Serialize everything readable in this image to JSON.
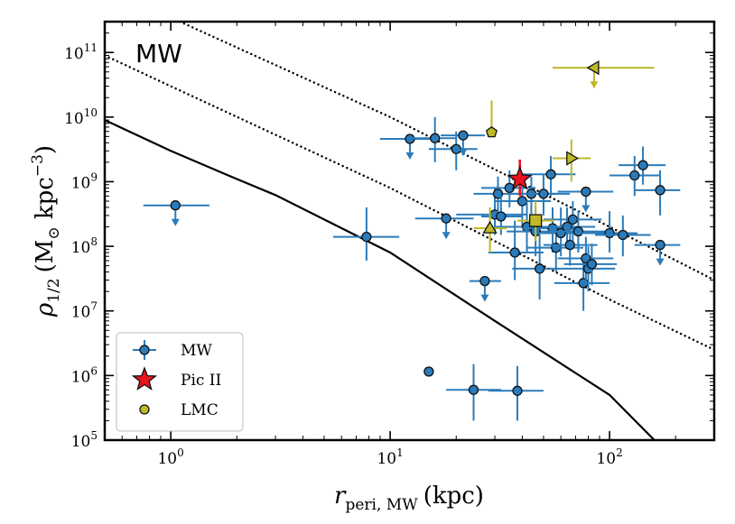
{
  "chart_data": {
    "type": "scatter",
    "panel_label": "MW",
    "xlabel": {
      "main": "r",
      "sub": "peri, MW",
      "unit": "(kpc)"
    },
    "ylabel": {
      "main": "ρ",
      "sub": "1/2",
      "unit_open": "(M",
      "unit_sub": "⊙",
      "unit_mid": " kpc",
      "unit_sup": "−3",
      "unit_close": ")"
    },
    "xscale": "log",
    "yscale": "log",
    "xlim": [
      0.5,
      300
    ],
    "ylim": [
      100000,
      300000000000
    ],
    "x_ticks": [
      {
        "value": 1,
        "base": "10",
        "exp": "0"
      },
      {
        "value": 10,
        "base": "10",
        "exp": "1"
      },
      {
        "value": 100,
        "base": "10",
        "exp": "2"
      }
    ],
    "y_ticks": [
      {
        "value": 100000,
        "base": "10",
        "exp": "5"
      },
      {
        "value": 1000000,
        "base": "10",
        "exp": "6"
      },
      {
        "value": 10000000,
        "base": "10",
        "exp": "7"
      },
      {
        "value": 100000000,
        "base": "10",
        "exp": "8"
      },
      {
        "value": 1000000000,
        "base": "10",
        "exp": "9"
      },
      {
        "value": 10000000000,
        "base": "10",
        "exp": "10"
      },
      {
        "value": 100000000000,
        "base": "10",
        "exp": "11"
      }
    ],
    "lines": [
      {
        "name": "solid",
        "style": "solid",
        "x": [
          0.5,
          1,
          2,
          3,
          10,
          30,
          100,
          160
        ],
        "y": [
          9000000000,
          3000000000,
          1100000000,
          620000000,
          80000000,
          7000000,
          500000,
          100000
        ]
      },
      {
        "name": "dotted-lower",
        "style": "dotted",
        "x": [
          0.5,
          1,
          10,
          100,
          300
        ],
        "y": [
          90000000000,
          30000000000,
          800000000,
          15000000,
          2500000
        ]
      },
      {
        "name": "dotted-upper",
        "style": "dotted",
        "x": [
          1.1,
          10,
          100,
          300
        ],
        "y": [
          300000000000,
          10000000000,
          200000000,
          30000000
        ]
      }
    ],
    "series": [
      {
        "name": "MW",
        "color": "#2b7bba",
        "marker": "circle",
        "points": [
          {
            "x": 1.05,
            "y": 430000000.0,
            "xerr": [
              0.75,
              1.5
            ],
            "ul": true
          },
          {
            "x": 7.8,
            "y": 140000000.0,
            "xerr": [
              5.5,
              11
            ],
            "yerr": [
              60000000.0,
              400000000.0
            ]
          },
          {
            "x": 12.3,
            "y": 4600000000.0,
            "xerr": [
              9,
              16
            ],
            "ul": true
          },
          {
            "x": 16,
            "y": 4700000000.0,
            "xerr": [
              12,
              20
            ],
            "yerr": [
              2000000000.0,
              10000000000.0
            ]
          },
          {
            "x": 20,
            "y": 3200000000.0,
            "xerr": [
              15,
              25
            ],
            "yerr": [
              1500000000.0,
              6000000000.0
            ]
          },
          {
            "x": 21.5,
            "y": 5200000000.0,
            "xerr": [
              17,
              27
            ],
            "ul": true
          },
          {
            "x": 18,
            "y": 270000000.0,
            "xerr": [
              13,
              24
            ],
            "ul": true
          },
          {
            "x": 15,
            "y": 1150000.0
          },
          {
            "x": 24,
            "y": 600000.0,
            "xerr": [
              18,
              32
            ],
            "yerr": [
              200000.0,
              1500000.0
            ]
          },
          {
            "x": 38,
            "y": 580000.0,
            "xerr": [
              28,
              50
            ],
            "yerr": [
              200000.0,
              1400000.0
            ]
          },
          {
            "x": 27,
            "y": 29000000.0,
            "xerr": [
              23,
              32
            ],
            "ul": true
          },
          {
            "x": 30,
            "y": 310000000.0,
            "xerr": [
              20,
              42
            ],
            "yerr": [
              150000000.0,
              800000000.0
            ]
          },
          {
            "x": 31,
            "y": 650000000.0,
            "xerr": [
              24,
              40
            ],
            "yerr": [
              300000000.0,
              1200000000.0
            ]
          },
          {
            "x": 32,
            "y": 290000000.0,
            "xerr": [
              26,
              40
            ],
            "yerr": [
              150000000.0,
              600000000.0
            ]
          },
          {
            "x": 35,
            "y": 800000000.0,
            "xerr": [
              26,
              46
            ],
            "yerr": [
              400000000.0,
              1500000000.0
            ]
          },
          {
            "x": 37,
            "y": 80000000.0,
            "xerr": [
              28,
              50
            ],
            "yerr": [
              30000000.0,
              250000000.0
            ]
          },
          {
            "x": 40,
            "y": 500000000.0,
            "xerr": [
              30,
              54
            ],
            "yerr": [
              200000000.0,
              1000000000.0
            ]
          },
          {
            "x": 42,
            "y": 200000000.0,
            "xerr": [
              30,
              56
            ],
            "yerr": [
              80000000.0,
              500000000.0
            ]
          },
          {
            "x": 44,
            "y": 650000000.0,
            "xerr": [
              34,
              58
            ],
            "yerr": [
              300000000.0,
              1200000000.0
            ]
          },
          {
            "x": 46,
            "y": 170000000.0,
            "xerr": [
              34,
              62
            ],
            "yerr": [
              70000000.0,
              400000000.0
            ]
          },
          {
            "x": 48,
            "y": 45000000.0,
            "xerr": [
              36,
              60
            ],
            "yerr": [
              15000000.0,
              150000000.0
            ]
          },
          {
            "x": 50,
            "y": 650000000.0,
            "xerr": [
              38,
              66
            ],
            "yerr": [
              300000000.0,
              1300000000.0
            ]
          },
          {
            "x": 54,
            "y": 1300000000.0,
            "xerr": [
              40,
              70
            ],
            "yerr": [
              600000000.0,
              2500000000.0
            ]
          },
          {
            "x": 55,
            "y": 190000000.0,
            "xerr": [
              40,
              72
            ],
            "yerr": [
              80000000.0,
              400000000.0
            ]
          },
          {
            "x": 57,
            "y": 95000000.0,
            "xerr": [
              42,
              76
            ],
            "yerr": [
              40000000.0,
              200000000.0
            ]
          },
          {
            "x": 60,
            "y": 160000000.0,
            "xerr": [
              45,
              80
            ],
            "yerr": [
              70000000.0,
              400000000.0
            ]
          },
          {
            "x": 64,
            "y": 200000000.0,
            "xerr": [
              48,
              86
            ],
            "yerr": [
              90000000.0,
              400000000.0
            ]
          },
          {
            "x": 66,
            "y": 105000000.0,
            "xerr": [
              50,
              88
            ],
            "yerr": [
              50000000.0,
              250000000.0
            ]
          },
          {
            "x": 68,
            "y": 260000000.0,
            "xerr": [
              50,
              92
            ],
            "yerr": [
              120000000.0,
              500000000.0
            ]
          },
          {
            "x": 72,
            "y": 170000000.0,
            "xerr": [
              52,
              98
            ],
            "yerr": [
              80000000.0,
              350000000.0
            ]
          },
          {
            "x": 76,
            "y": 27000000.0,
            "xerr": [
              56,
              100
            ],
            "yerr": [
              10000000.0,
              70000000.0
            ]
          },
          {
            "x": 78,
            "y": 65000000.0,
            "xerr": [
              58,
              104
            ],
            "yerr": [
              30000000.0,
              140000000.0
            ]
          },
          {
            "x": 80,
            "y": 45000000.0,
            "xerr": [
              60,
              106
            ],
            "yerr": [
              20000000.0,
              100000000.0
            ]
          },
          {
            "x": 83,
            "y": 53000000.0,
            "xerr": [
              62,
              108
            ],
            "yerr": [
              25000000.0,
              110000000.0
            ]
          },
          {
            "x": 78,
            "y": 700000000.0,
            "xerr": [
              58,
              104
            ],
            "ul": true
          },
          {
            "x": 100,
            "y": 160000000.0,
            "xerr": [
              74,
              134
            ],
            "yerr": [
              80000000.0,
              350000000.0
            ]
          },
          {
            "x": 115,
            "y": 150000000.0,
            "xerr": [
              86,
              154
            ],
            "yerr": [
              70000000.0,
              300000000.0
            ]
          },
          {
            "x": 130,
            "y": 1250000000.0,
            "xerr": [
              100,
              170
            ],
            "yerr": [
              600000000.0,
              2500000000.0
            ]
          },
          {
            "x": 142,
            "y": 1800000000.0,
            "xerr": [
              110,
              180
            ],
            "yerr": [
              900000000.0,
              3500000000.0
            ]
          },
          {
            "x": 170,
            "y": 740000000.0,
            "xerr": [
              130,
              210
            ],
            "yerr": [
              300000000.0,
              1500000000.0
            ]
          },
          {
            "x": 170,
            "y": 105000000.0,
            "xerr": [
              130,
              210
            ],
            "ul": true
          }
        ]
      },
      {
        "name": "Pic II",
        "color": "#e8141e",
        "marker": "star",
        "points": [
          {
            "x": 39,
            "y": 1100000000.0,
            "xerr": [
              36,
              42
            ],
            "yerr": [
              600000000.0,
              2200000000.0
            ]
          }
        ]
      },
      {
        "name": "LMC",
        "color": "#bdb928",
        "marker": "circle",
        "points": [
          {
            "x": 46,
            "y": 250000000.0,
            "marker": "square",
            "xerr": [
              38,
              56
            ],
            "yerr": [
              120000000.0,
              500000000.0
            ]
          },
          {
            "x": 28.5,
            "y": 190000000.0,
            "marker": "triangle-up",
            "xerr": [
              24,
              34
            ],
            "yerr": [
              80000000.0,
              400000000.0
            ]
          },
          {
            "x": 29,
            "y": 5800000000.0,
            "marker": "pentagon",
            "yerr": [
              5800000000.0,
              18000000000.0
            ]
          },
          {
            "x": 67,
            "y": 2300000000.0,
            "marker": "triangle-right",
            "xerr": [
              55,
              82
            ],
            "yerr": [
              1000000000.0,
              4500000000.0
            ]
          },
          {
            "x": 85,
            "y": 58000000000.0,
            "marker": "triangle-left",
            "xerr": [
              55,
              160
            ],
            "ul": true
          }
        ]
      }
    ],
    "legend": {
      "location": "lower-left",
      "entries": [
        {
          "label": "MW",
          "marker": "circle",
          "color": "#2b7bba"
        },
        {
          "label": "Pic II",
          "marker": "star",
          "color": "#e8141e"
        },
        {
          "label": "LMC",
          "marker": "circle",
          "color": "#bdb928"
        }
      ]
    }
  }
}
